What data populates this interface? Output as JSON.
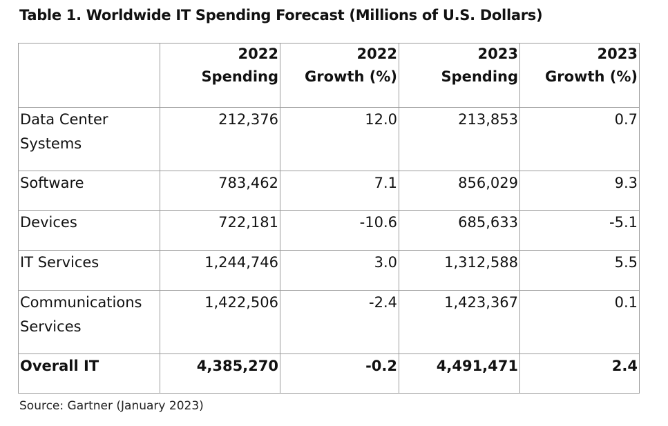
{
  "title": "Table 1. Worldwide IT Spending Forecast (Millions of U.S. Dollars)",
  "header": {
    "col1_line1": "2022",
    "col1_line2": "Spending",
    "col2_line1": "2022",
    "col2_line2": "Growth (%)",
    "col3_line1": "2023",
    "col3_line2": "Spending",
    "col4_line1": "2023",
    "col4_line2": "Growth (%)"
  },
  "rows": [
    {
      "label_line1": "Data Center",
      "label_line2": "Systems",
      "spend_2022": "212,376",
      "growth_2022": "12.0",
      "spend_2023": "213,853",
      "growth_2023": "0.7"
    },
    {
      "label_line1": "Software",
      "label_line2": "",
      "spend_2022": "783,462",
      "growth_2022": "7.1",
      "spend_2023": "856,029",
      "growth_2023": "9.3"
    },
    {
      "label_line1": "Devices",
      "label_line2": "",
      "spend_2022": "722,181",
      "growth_2022": "-10.6",
      "spend_2023": "685,633",
      "growth_2023": "-5.1"
    },
    {
      "label_line1": "IT Services",
      "label_line2": "",
      "spend_2022": "1,244,746",
      "growth_2022": "3.0",
      "spend_2023": "1,312,588",
      "growth_2023": "5.5"
    },
    {
      "label_line1": "Communications",
      "label_line2": "Services",
      "spend_2022": "1,422,506",
      "growth_2022": "-2.4",
      "spend_2023": "1,423,367",
      "growth_2023": "0.1"
    }
  ],
  "total": {
    "label": "Overall IT",
    "spend_2022": "4,385,270",
    "growth_2022": "-0.2",
    "spend_2023": "4,491,471",
    "growth_2023": "2.4"
  },
  "source": "Source: Gartner (January 2023)"
}
